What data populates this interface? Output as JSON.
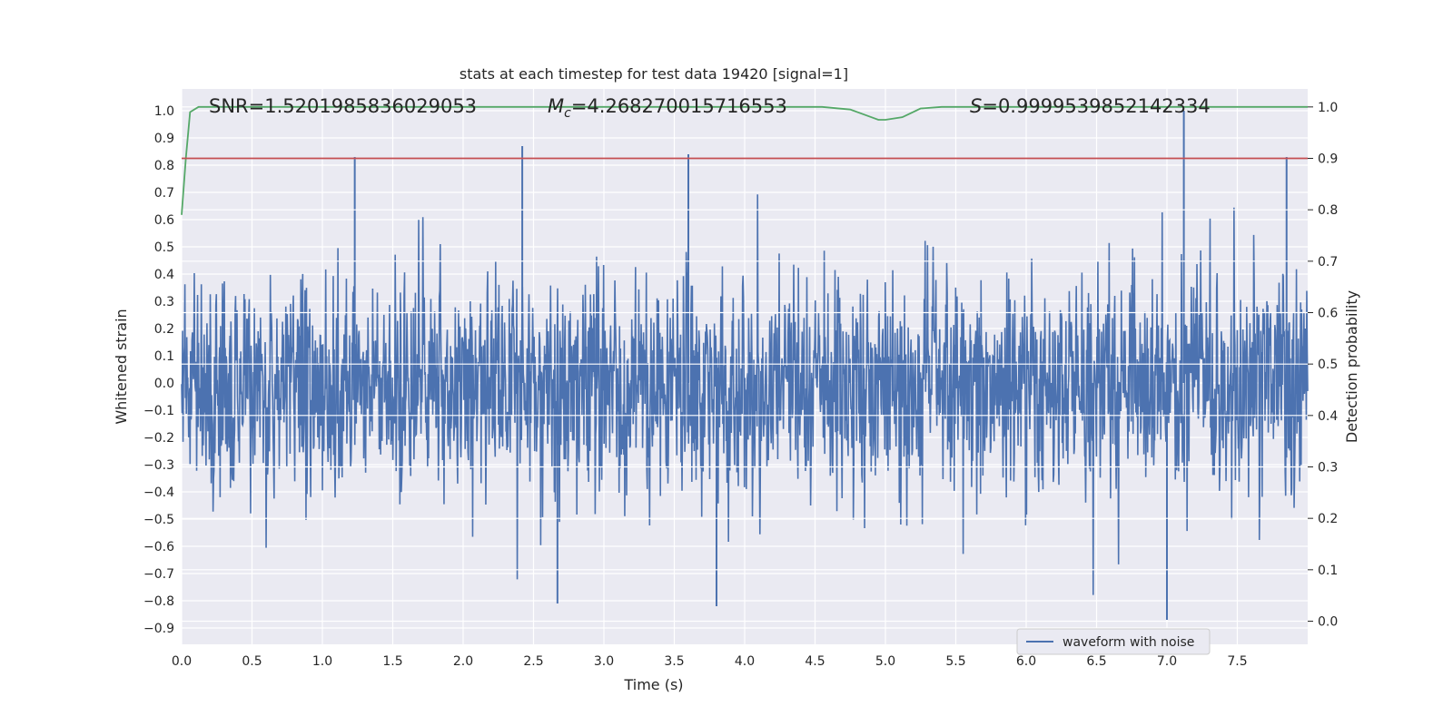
{
  "chart_data": {
    "type": "line",
    "title": "stats at each timestep for test data 19420 [signal=1]",
    "xlabel": "Time (s)",
    "ylabel": "Whitened strain",
    "y2label": "Detection probability",
    "xlim": [
      0.0,
      8.0
    ],
    "ylim": [
      -0.96,
      1.08
    ],
    "y2lim": [
      -0.045,
      1.035
    ],
    "xticks": [
      "0.0",
      "0.5",
      "1.0",
      "1.5",
      "2.0",
      "2.5",
      "3.0",
      "3.5",
      "4.0",
      "4.5",
      "5.0",
      "5.5",
      "6.0",
      "6.5",
      "7.0",
      "7.5"
    ],
    "yticks": [
      "−0.9",
      "−0.8",
      "−0.7",
      "−0.6",
      "−0.5",
      "−0.4",
      "−0.3",
      "−0.2",
      "−0.1",
      "0.0",
      "0.1",
      "0.2",
      "0.3",
      "0.4",
      "0.5",
      "0.6",
      "0.7",
      "0.8",
      "0.9",
      "1.0"
    ],
    "y2ticks": [
      "0.0",
      "0.1",
      "0.2",
      "0.3",
      "0.4",
      "0.5",
      "0.6",
      "0.7",
      "0.8",
      "0.9",
      "1.0"
    ],
    "annotations": {
      "snr": "SNR=1.5201985836029053",
      "mc_symbol": "M",
      "mc_sub": "c",
      "mc_value": "=4.268270015716553",
      "s_symbol": "S",
      "s_value": "=0.9999539852142334"
    },
    "legend": {
      "label": "waveform with noise",
      "location": "lower-center-right"
    },
    "series": [
      {
        "name": "waveform with noise",
        "axis": "left",
        "color": "#4c72b0",
        "style": "dense noise",
        "approx_envelope": [
          -0.87,
          1.0
        ],
        "notable_peaks": [
          {
            "x": 2.42,
            "y": 0.87
          },
          {
            "x": 3.6,
            "y": 0.84
          },
          {
            "x": 1.23,
            "y": 0.83
          },
          {
            "x": 7.12,
            "y": 1.0
          },
          {
            "x": 7.85,
            "y": 0.83
          }
        ],
        "notable_troughs": [
          {
            "x": 2.67,
            "y": -0.81
          },
          {
            "x": 3.8,
            "y": -0.82
          },
          {
            "x": 7.0,
            "y": -0.87
          }
        ]
      },
      {
        "name": "detection probability",
        "axis": "right",
        "color": "#55a868",
        "x": [
          0.0,
          0.03,
          0.06,
          0.12,
          4.55,
          4.75,
          4.85,
          4.95,
          5.0,
          5.12,
          5.25,
          5.4,
          8.0
        ],
        "values": [
          0.79,
          0.9,
          0.99,
          1.0,
          1.0,
          0.995,
          0.985,
          0.975,
          0.975,
          0.98,
          0.997,
          1.0,
          1.0
        ]
      },
      {
        "name": "threshold",
        "axis": "right",
        "color": "#c44e52",
        "x": [
          0.0,
          8.0
        ],
        "values": [
          0.9,
          0.9
        ]
      }
    ]
  }
}
